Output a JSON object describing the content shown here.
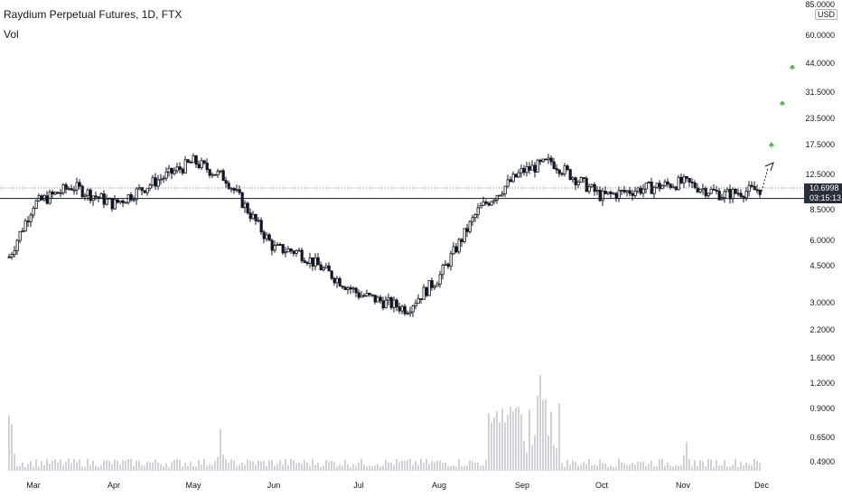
{
  "header": {
    "symbol": "Raydium Perpetual Futures, 1D, FTX",
    "vol_label": "Vol"
  },
  "price_axis": {
    "currency": "USD",
    "ticks": [
      "85.0000",
      "60.0000",
      "44.0000",
      "31.5000",
      "23.5000",
      "17.5000",
      "12.5000",
      "8.5000",
      "6.0000",
      "4.5000",
      "3.0000",
      "2.2000",
      "1.6000",
      "1.2000",
      "0.9000",
      "0.6500",
      "0.4900"
    ],
    "last_price": "10.6998",
    "countdown": "03:15:13"
  },
  "time_axis": {
    "months": [
      "Mar",
      "Apr",
      "May",
      "Jun",
      "Jul",
      "Aug",
      "Sep",
      "Oct",
      "Nov",
      "Dec"
    ]
  },
  "colors": {
    "up": "#26a69a",
    "down": "#ef5350",
    "candle": "#131722",
    "line": "#131722",
    "dotted": "#787b86",
    "arrow_plant": "#4caf50"
  },
  "chart_data": {
    "type": "candlestick",
    "title": "Raydium Perpetual Futures, 1D, FTX",
    "scale": "log",
    "ylim": [
      0.49,
      85
    ],
    "x_months": [
      "Mar",
      "Apr",
      "May",
      "Jun",
      "Jul",
      "Aug",
      "Sep",
      "Oct",
      "Nov",
      "Dec"
    ],
    "price_path": [
      {
        "m": "Feb-end",
        "price": 5.0
      },
      {
        "m": "Mar",
        "price": 9.0
      },
      {
        "m": "Mar-mid",
        "price": 11.0
      },
      {
        "m": "Apr",
        "price": 9.0
      },
      {
        "m": "Apr-mid",
        "price": 11.5
      },
      {
        "m": "May",
        "price": 14.5
      },
      {
        "m": "May-mid",
        "price": 12.0
      },
      {
        "m": "Jun",
        "price": 5.5
      },
      {
        "m": "Jun-mid",
        "price": 5.3
      },
      {
        "m": "Jul",
        "price": 3.3
      },
      {
        "m": "Jul-mid",
        "price": 2.8
      },
      {
        "m": "Aug",
        "price": 4.0
      },
      {
        "m": "Aug-mid",
        "price": 8.5
      },
      {
        "m": "Sep",
        "price": 13.0
      },
      {
        "m": "Sep-mid",
        "price": 14.5
      },
      {
        "m": "Oct",
        "price": 9.8
      },
      {
        "m": "Oct-mid",
        "price": 10.5
      },
      {
        "m": "Nov",
        "price": 11.5
      },
      {
        "m": "Nov-mid",
        "price": 10.0
      },
      {
        "m": "Dec",
        "price": 10.7
      }
    ],
    "last_price": 10.6998,
    "support_level": 9.6,
    "volume_peaks": [
      {
        "m": "Feb-end",
        "value": 1.0
      },
      {
        "m": "May-mid",
        "value": 0.8
      },
      {
        "m": "Sep",
        "value": 1.2
      },
      {
        "m": "Sep-mid",
        "value": 1.6
      },
      {
        "m": "Nov",
        "value": 0.7
      }
    ]
  }
}
